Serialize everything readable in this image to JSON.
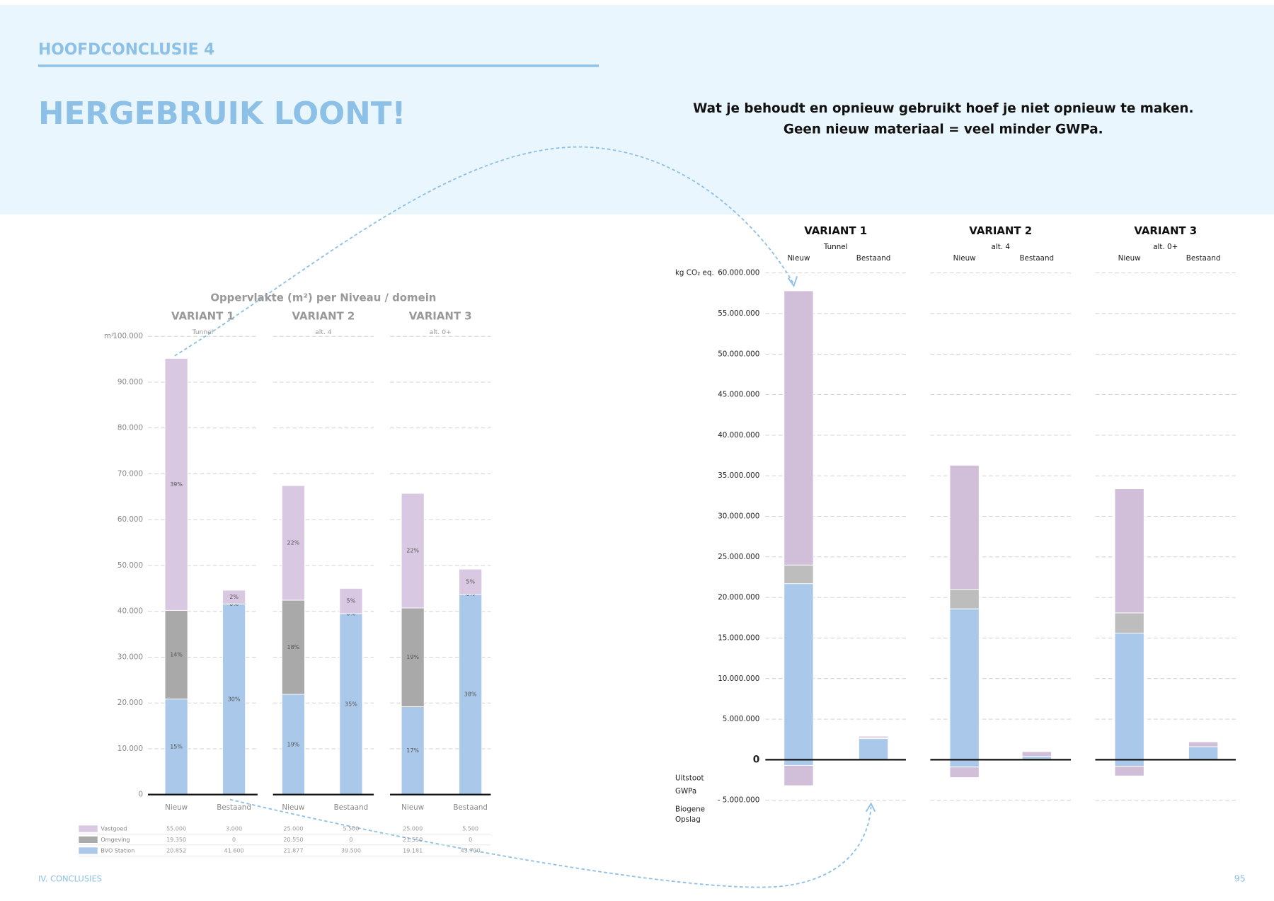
{
  "header": {
    "kicker": "HOOFDCONCLUSIE 4",
    "title": "HERGEBRUIK LOONT!",
    "quote": [
      "Wat je behoudt en opnieuw gebruikt hoef je niet opnieuw te maken.",
      "Geen nieuw materiaal = veel minder GWPa."
    ]
  },
  "footer": {
    "section": "IV. CONCLUSIES",
    "page": "95"
  },
  "chart_data": [
    {
      "type": "bar",
      "stacked": true,
      "title": "Oppervlakte (m²) per Niveau / domein",
      "y_label": "m²",
      "groups": [
        {
          "name": "VARIANT 1",
          "subtitle": "Tunnel"
        },
        {
          "name": "VARIANT 2",
          "subtitle": "alt. 4"
        },
        {
          "name": "VARIANT 3",
          "subtitle": "alt. 0+"
        }
      ],
      "categories": [
        "Nieuw",
        "Bestaand",
        "Nieuw",
        "Bestaand",
        "Nieuw",
        "Bestaand"
      ],
      "series": [
        {
          "name": "Vastgoed",
          "color": "#d8c8e1",
          "values": [
            55000,
            3000,
            25000,
            5500,
            25000,
            5500
          ],
          "value_labels": [
            "55.000",
            "3.000",
            "25.000",
            "5.500",
            "25.000",
            "5.500"
          ],
          "share_labels": [
            "39%",
            "2%",
            "22%",
            "5%",
            "22%",
            "5%"
          ]
        },
        {
          "name": "Omgeving",
          "color": "#a9a9a9",
          "values": [
            19350,
            0,
            20550,
            0,
            21550,
            0
          ],
          "value_labels": [
            "19.350",
            "0",
            "20.550",
            "0",
            "21.550",
            "0"
          ],
          "share_labels": [
            "14%",
            "0%",
            "18%",
            "0%",
            "19%",
            "0%"
          ]
        },
        {
          "name": "BVO Station",
          "color": "#a9c8ea",
          "values": [
            20852,
            41600,
            21877,
            39500,
            19181,
            43700
          ],
          "value_labels": [
            "20.852",
            "41.600",
            "21.877",
            "39.500",
            "19.181",
            "43.700"
          ],
          "share_labels": [
            "15%",
            "30%",
            "19%",
            "35%",
            "17%",
            "38%"
          ]
        }
      ],
      "ylim": [
        0,
        100000
      ],
      "yticks": [
        0,
        {
          "value": 10000,
          "label": "10.000"
        },
        {
          "value": 20000,
          "label": "20.000"
        },
        {
          "value": 30000,
          "label": "30.000"
        },
        {
          "value": 40000,
          "label": "40.000"
        },
        {
          "value": 50000,
          "label": "50.000"
        },
        {
          "value": 60000,
          "label": "60.000"
        },
        {
          "value": 70000,
          "label": "70.000"
        },
        {
          "value": 80000,
          "label": "80.000"
        },
        {
          "value": 90000,
          "label": "90.000"
        },
        {
          "value": 100000,
          "label": "100.000"
        }
      ],
      "grid": true
    },
    {
      "type": "bar",
      "stacked": true,
      "y_label": "kg CO₂ eq.",
      "annotations": [
        "Uitstoot",
        "GWPa",
        "Biogene",
        "Opslag"
      ],
      "groups": [
        {
          "name": "VARIANT 1",
          "subtitle": "Tunnel"
        },
        {
          "name": "VARIANT 2",
          "subtitle": "alt. 4"
        },
        {
          "name": "VARIANT 3",
          "subtitle": "alt. 0+"
        }
      ],
      "categories": [
        "Nieuw",
        "Bestaand",
        "Nieuw",
        "Bestaand",
        "Nieuw",
        "Bestaand"
      ],
      "series": [
        {
          "color": "#a9c8ea",
          "values": [
            21700000,
            2600000,
            18600000,
            400000,
            15600000,
            1600000
          ]
        },
        {
          "color": "#bdbdbd",
          "values": [
            2300000,
            100000,
            2400000,
            0,
            2500000,
            0
          ]
        },
        {
          "color": "#d1bfda",
          "values": [
            33800000,
            200000,
            15300000,
            600000,
            15300000,
            600000
          ]
        },
        {
          "color": "#a9c8ea",
          "values": [
            -700000,
            0,
            -900000,
            0,
            -800000,
            0
          ]
        },
        {
          "color": "#d1bfda",
          "values": [
            -2500000,
            0,
            -1300000,
            0,
            -1200000,
            0
          ]
        }
      ],
      "ylim": [
        -5000000,
        60000000
      ],
      "yticks": [
        {
          "value": -5000000,
          "label": "- 5.000.000"
        },
        0,
        {
          "value": 5000000,
          "label": "5.000.000"
        },
        {
          "value": 10000000,
          "label": "10.000.000"
        },
        {
          "value": 15000000,
          "label": "15.000.000"
        },
        {
          "value": 20000000,
          "label": "20.000.000"
        },
        {
          "value": 25000000,
          "label": "25.000.000"
        },
        {
          "value": 30000000,
          "label": "30.000.000"
        },
        {
          "value": 35000000,
          "label": "35.000.000"
        },
        {
          "value": 40000000,
          "label": "40.000.000"
        },
        {
          "value": 45000000,
          "label": "45.000.000"
        },
        {
          "value": 50000000,
          "label": "50.000.000"
        },
        {
          "value": 55000000,
          "label": "55.000.000"
        },
        {
          "value": 60000000,
          "label": "60.000.000"
        }
      ],
      "grid": true
    }
  ]
}
